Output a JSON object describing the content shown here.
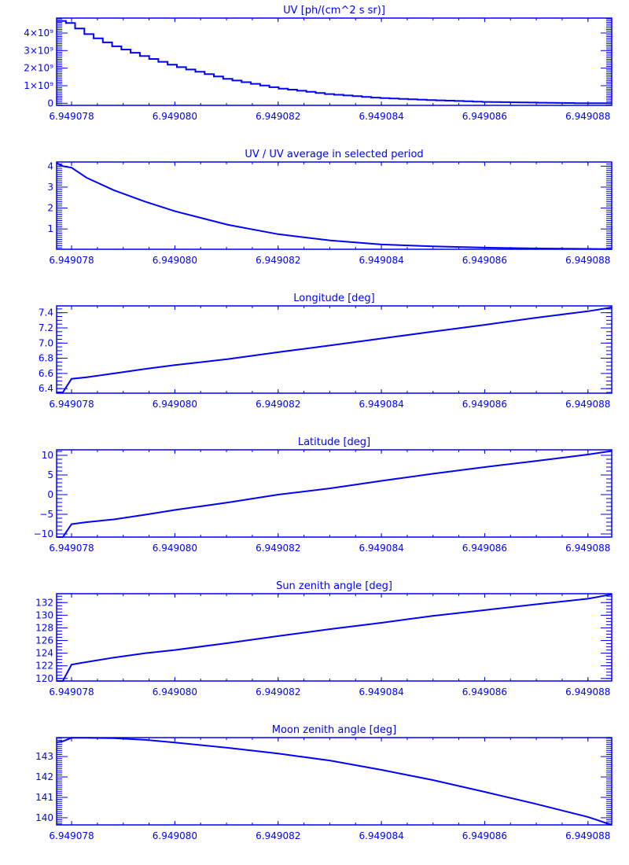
{
  "chart_data": [
    {
      "type": "line",
      "title": "UV [ph/(cm^2 s sr)]",
      "step": true,
      "x": [
        6.94907771,
        6.94907783,
        6.949078,
        6.94907829,
        6.94907882,
        6.94907943,
        6.94908,
        6.94908103,
        6.949082,
        6.94908301,
        6.949084,
        6.94908499,
        6.949086,
        6.94908696,
        6.949088,
        6.94908846
      ],
      "values": [
        4800000000.0,
        4650000000.0,
        4560000000.0,
        4000000000.0,
        3300000000.0,
        2670000000.0,
        2150000000.0,
        1390000000.0,
        870000000.0,
        520000000.0,
        300000000.0,
        180000000.0,
        80000000.0,
        40000000.0,
        0.0,
        0.0
      ],
      "xlim": [
        6.94907771,
        6.94908846
      ],
      "ylim": [
        -120000000.0,
        4850000000.0
      ],
      "y_ticks": [
        {
          "value": 0,
          "label": "0"
        },
        {
          "value": 1000000000.0,
          "label": "1×10⁹"
        },
        {
          "value": 2000000000.0,
          "label": "2×10⁹"
        },
        {
          "value": 3000000000.0,
          "label": "3×10⁹"
        },
        {
          "value": 4000000000.0,
          "label": "4×10⁹"
        }
      ],
      "y_minor": 100000000.0
    },
    {
      "type": "line",
      "title": "UV / UV average in selected period",
      "x": [
        6.94907771,
        6.94907783,
        6.949078,
        6.94907829,
        6.94907882,
        6.94907943,
        6.94908,
        6.94908103,
        6.949082,
        6.94908301,
        6.949084,
        6.94908499,
        6.949086,
        6.94908696,
        6.949088,
        6.94908846
      ],
      "values": [
        4.15,
        4.0,
        3.93,
        3.45,
        2.85,
        2.3,
        1.85,
        1.2,
        0.75,
        0.45,
        0.26,
        0.17,
        0.11,
        0.07,
        0.05,
        0.04
      ],
      "xlim": [
        6.94907771,
        6.94908846
      ],
      "ylim": [
        0.03,
        4.2
      ],
      "y_ticks": [
        {
          "value": 1,
          "label": "1"
        },
        {
          "value": 2,
          "label": "2"
        },
        {
          "value": 3,
          "label": "3"
        },
        {
          "value": 4,
          "label": "4"
        }
      ],
      "y_minor": 0.1
    },
    {
      "type": "line",
      "title": "Longitude [deg]",
      "x": [
        6.94907771,
        6.94907783,
        6.949078,
        6.94907829,
        6.94907882,
        6.94907943,
        6.94908,
        6.94908103,
        6.949082,
        6.94908301,
        6.949084,
        6.94908499,
        6.949086,
        6.94908696,
        6.949088,
        6.94908846
      ],
      "values": [
        6.35,
        6.35,
        6.53,
        6.55,
        6.6,
        6.66,
        6.71,
        6.79,
        6.88,
        6.97,
        7.06,
        7.15,
        7.24,
        7.33,
        7.42,
        7.47
      ],
      "xlim": [
        6.94907771,
        6.94908846
      ],
      "ylim": [
        6.34,
        7.49
      ],
      "y_ticks": [
        {
          "value": 6.4,
          "label": "6.4"
        },
        {
          "value": 6.6,
          "label": "6.6"
        },
        {
          "value": 6.8,
          "label": "6.8"
        },
        {
          "value": 7.0,
          "label": "7.0"
        },
        {
          "value": 7.2,
          "label": "7.2"
        },
        {
          "value": 7.4,
          "label": "7.4"
        }
      ],
      "y_minor": 0.05
    },
    {
      "type": "line",
      "title": "Latitude [deg]",
      "x": [
        6.94907771,
        6.94907783,
        6.949078,
        6.94907829,
        6.94907882,
        6.94907943,
        6.94908,
        6.94908103,
        6.949082,
        6.94908301,
        6.949084,
        6.94908499,
        6.949086,
        6.94908696,
        6.949088,
        6.94908846
      ],
      "values": [
        -10.8,
        -10.8,
        -7.5,
        -7.0,
        -6.3,
        -5.1,
        -3.9,
        -2.0,
        0.0,
        1.6,
        3.5,
        5.3,
        7.0,
        8.5,
        10.2,
        11.1
      ],
      "xlim": [
        6.94907771,
        6.94908846
      ],
      "ylim": [
        -10.8,
        11.4
      ],
      "y_ticks": [
        {
          "value": -10,
          "label": "−10"
        },
        {
          "value": -5,
          "label": "−5"
        },
        {
          "value": 0,
          "label": "0"
        },
        {
          "value": 5,
          "label": "5"
        },
        {
          "value": 10,
          "label": "10"
        }
      ],
      "y_minor": 1
    },
    {
      "type": "line",
      "title": "Sun zenith angle [deg]",
      "x": [
        6.94907771,
        6.94907783,
        6.949078,
        6.94907829,
        6.94907882,
        6.94907943,
        6.94908,
        6.94908103,
        6.949082,
        6.94908301,
        6.949084,
        6.94908499,
        6.949086,
        6.94908696,
        6.949088,
        6.94908846
      ],
      "values": [
        119.6,
        119.6,
        122.2,
        122.6,
        123.3,
        124.0,
        124.5,
        125.6,
        126.7,
        127.8,
        128.8,
        129.9,
        130.8,
        131.7,
        132.6,
        133.3
      ],
      "xlim": [
        6.94907771,
        6.94908846
      ],
      "ylim": [
        119.6,
        133.4
      ],
      "y_ticks": [
        {
          "value": 120,
          "label": "120"
        },
        {
          "value": 122,
          "label": "122"
        },
        {
          "value": 124,
          "label": "124"
        },
        {
          "value": 126,
          "label": "126"
        },
        {
          "value": 128,
          "label": "128"
        },
        {
          "value": 130,
          "label": "130"
        },
        {
          "value": 132,
          "label": "132"
        }
      ],
      "y_minor": 0.5
    },
    {
      "type": "line",
      "title": "Moon zenith angle [deg]",
      "x": [
        6.94907771,
        6.94907783,
        6.949078,
        6.94907829,
        6.94907882,
        6.94907943,
        6.94908,
        6.94908103,
        6.949082,
        6.94908301,
        6.949084,
        6.94908499,
        6.949086,
        6.94908696,
        6.949088,
        6.94908846
      ],
      "values": [
        143.7,
        143.75,
        143.92,
        143.92,
        143.9,
        143.82,
        143.69,
        143.43,
        143.15,
        142.8,
        142.35,
        141.85,
        141.27,
        140.7,
        140.04,
        139.65
      ],
      "xlim": [
        6.94907771,
        6.94908846
      ],
      "ylim": [
        139.65,
        143.93
      ],
      "y_ticks": [
        {
          "value": 140,
          "label": "140"
        },
        {
          "value": 141,
          "label": "141"
        },
        {
          "value": 142,
          "label": "142"
        },
        {
          "value": 143,
          "label": "143"
        }
      ],
      "y_minor": 0.1
    }
  ],
  "x_ticks": [
    {
      "value": 6.949078,
      "label": "6.949078"
    },
    {
      "value": 6.94908,
      "label": "6.949080"
    },
    {
      "value": 6.949082,
      "label": "6.949082"
    },
    {
      "value": 6.949084,
      "label": "6.949084"
    },
    {
      "value": 6.949086,
      "label": "6.949086"
    },
    {
      "value": 6.949088,
      "label": "6.949088"
    }
  ],
  "x_minor": 5e-07,
  "colors": {
    "axes": "#0000ff",
    "line": "#0000ff"
  }
}
